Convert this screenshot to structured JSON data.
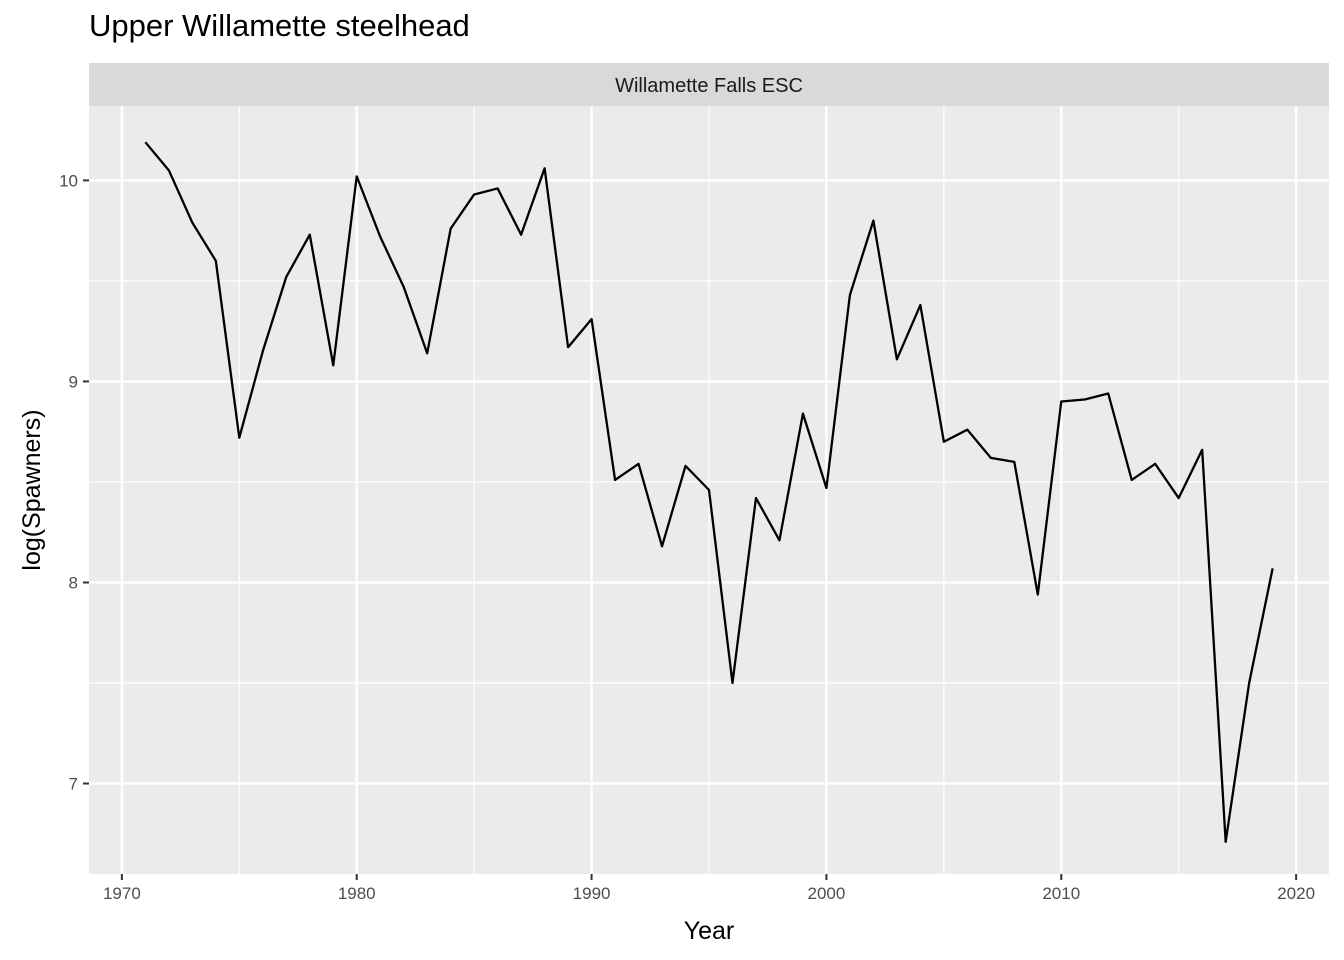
{
  "chart_data": {
    "type": "line",
    "title": "Upper Willamette steelhead",
    "facet": "Willamette Falls ESC",
    "xlabel": "Year",
    "ylabel": "log(Spawners)",
    "xlim": [
      1968.6,
      2021.4
    ],
    "ylim": [
      6.55,
      10.37
    ],
    "x_ticks": [
      1970,
      1980,
      1990,
      2000,
      2010,
      2020
    ],
    "y_ticks": [
      7,
      8,
      9,
      10
    ],
    "grid": true,
    "series": [
      {
        "color": "#000000",
        "x": [
          1971,
          1972,
          1973,
          1974,
          1975,
          1976,
          1977,
          1978,
          1979,
          1980,
          1981,
          1982,
          1983,
          1984,
          1985,
          1986,
          1987,
          1988,
          1989,
          1990,
          1991,
          1992,
          1993,
          1994,
          1995,
          1996,
          1997,
          1998,
          1999,
          2000,
          2001,
          2002,
          2003,
          2004,
          2005,
          2006,
          2007,
          2008,
          2009,
          2010,
          2011,
          2012,
          2013,
          2014,
          2015,
          2016,
          2017,
          2018,
          2019
        ],
        "values": [
          10.19,
          10.05,
          9.79,
          9.6,
          8.72,
          9.15,
          9.52,
          9.73,
          9.08,
          10.02,
          9.72,
          9.47,
          9.14,
          9.76,
          9.93,
          9.96,
          9.73,
          10.06,
          9.17,
          9.31,
          8.51,
          8.59,
          8.18,
          8.58,
          8.46,
          7.5,
          8.42,
          8.21,
          8.84,
          8.47,
          9.43,
          9.8,
          9.11,
          9.38,
          8.7,
          8.76,
          8.62,
          8.6,
          7.94,
          8.9,
          8.91,
          8.94,
          8.51,
          8.59,
          8.42,
          8.66,
          6.71,
          7.5,
          8.07
        ]
      }
    ]
  }
}
